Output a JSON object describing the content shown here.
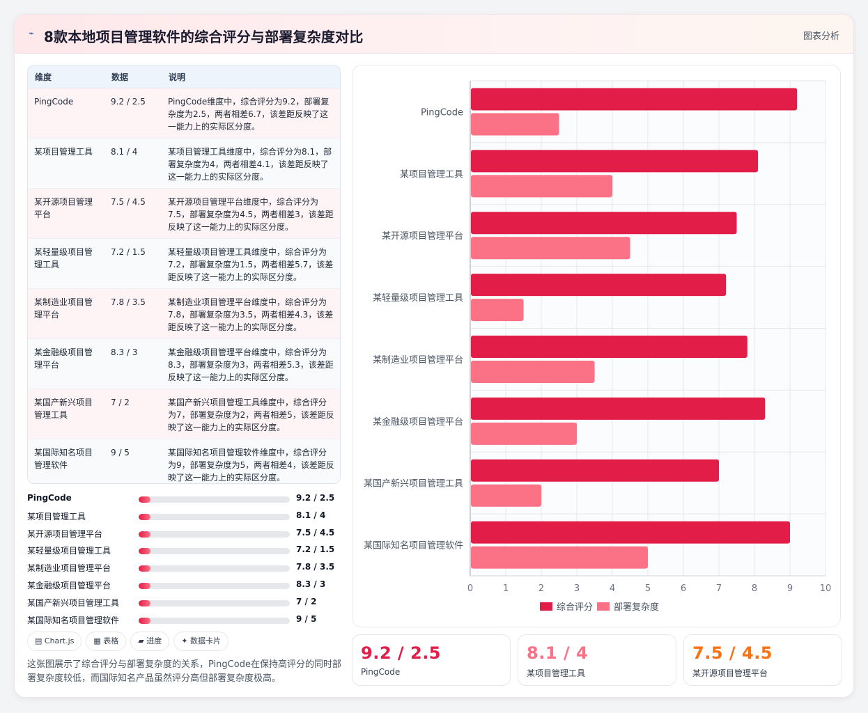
{
  "header": {
    "icon": "chart-line-icon",
    "title": "8款本地项目管理软件的综合评分与部署复杂度对比",
    "action_label": "图表分析"
  },
  "table": {
    "headers": [
      "维度",
      "数据",
      "说明"
    ],
    "rows": [
      {
        "name": "PingCode",
        "data": "9.2 / 2.5",
        "desc": "PingCode维度中，综合评分为9.2，部署复杂度为2.5，两者相差6.7，该差距反映了这一能力上的实际区分度。"
      },
      {
        "name": "某项目管理工具",
        "data": "8.1 / 4",
        "desc": "某项目管理工具维度中，综合评分为8.1，部署复杂度为4，两者相差4.1，该差距反映了这一能力上的实际区分度。"
      },
      {
        "name": "某开源项目管理平台",
        "data": "7.5 / 4.5",
        "desc": "某开源项目管理平台维度中，综合评分为7.5，部署复杂度为4.5，两者相差3，该差距反映了这一能力上的实际区分度。"
      },
      {
        "name": "某轻量级项目管理工具",
        "data": "7.2 / 1.5",
        "desc": "某轻量级项目管理工具维度中，综合评分为7.2，部署复杂度为1.5，两者相差5.7，该差距反映了这一能力上的实际区分度。"
      },
      {
        "name": "某制造业项目管理平台",
        "data": "7.8 / 3.5",
        "desc": "某制造业项目管理平台维度中，综合评分为7.8，部署复杂度为3.5，两者相差4.3，该差距反映了这一能力上的实际区分度。"
      },
      {
        "name": "某金融级项目管理平台",
        "data": "8.3 / 3",
        "desc": "某金融级项目管理平台维度中，综合评分为8.3，部署复杂度为3，两者相差5.3，该差距反映了这一能力上的实际区分度。"
      },
      {
        "name": "某国产新兴项目管理工具",
        "data": "7 / 2",
        "desc": "某国产新兴项目管理工具维度中，综合评分为7，部署复杂度为2，两者相差5，该差距反映了这一能力上的实际区分度。"
      },
      {
        "name": "某国际知名项目管理软件",
        "data": "9 / 5",
        "desc": "某国际知名项目管理软件维度中，综合评分为9，部署复杂度为5，两者相差4，该差距反映了这一能力上的实际区分度。"
      }
    ]
  },
  "progress": {
    "items": [
      {
        "label": "PingCode",
        "value_text": "9.2 / 2.5",
        "fill_fraction": 0.08
      },
      {
        "label": "某项目管理工具",
        "value_text": "8.1 / 4",
        "fill_fraction": 0.08
      },
      {
        "label": "某开源项目管理平台",
        "value_text": "7.5 / 4.5",
        "fill_fraction": 0.08
      },
      {
        "label": "某轻量级项目管理工具",
        "value_text": "7.2 / 1.5",
        "fill_fraction": 0.08
      },
      {
        "label": "某制造业项目管理平台",
        "value_text": "7.8 / 3.5",
        "fill_fraction": 0.08
      },
      {
        "label": "某金融级项目管理平台",
        "value_text": "8.3 / 3",
        "fill_fraction": 0.08
      },
      {
        "label": "某国产新兴项目管理工具",
        "value_text": "7 / 2",
        "fill_fraction": 0.08
      },
      {
        "label": "某国际知名项目管理软件",
        "value_text": "9 / 5",
        "fill_fraction": 0.08
      }
    ]
  },
  "view_tabs": [
    "▤ Chart.js",
    "▦ 表格",
    "▰ 进度",
    "✦ 数据卡片"
  ],
  "description": "这张图展示了综合评分与部署复杂度的关系，PingCode在保持高评分的同时部署复杂度较低，而国际知名产品虽然评分高但部署复杂度极高。",
  "stats": [
    {
      "value": "9.2 / 2.5",
      "label": "PingCode",
      "color": "#e11d48"
    },
    {
      "value": "8.1 / 4",
      "label": "某项目管理工具",
      "color": "#fb7185"
    },
    {
      "value": "7.5 / 4.5",
      "label": "某开源项目管理平台",
      "color": "#f97316"
    }
  ],
  "colors": {
    "series1": "#e11d48",
    "series2": "#fb7185",
    "accent": "#e11d48"
  },
  "chart_data": {
    "type": "bar",
    "orientation": "horizontal",
    "title": "",
    "xlabel": "",
    "ylabel": "",
    "categories": [
      "PingCode",
      "某项目管理工具",
      "某开源项目管理平台",
      "某轻量级项目管理工具",
      "某制造业项目管理平台",
      "某金融级项目管理平台",
      "某国产新兴项目管理工具",
      "某国际知名项目管理软件"
    ],
    "series": [
      {
        "name": "综合评分",
        "color": "#e11d48",
        "values": [
          9.2,
          8.1,
          7.5,
          7.2,
          7.8,
          8.3,
          7,
          9
        ]
      },
      {
        "name": "部署复杂度",
        "color": "#fb7185",
        "values": [
          2.5,
          4,
          4.5,
          1.5,
          3.5,
          3,
          2,
          5
        ]
      }
    ],
    "xlim": [
      0,
      10
    ],
    "xticks": [
      "0",
      "1",
      "2",
      "3",
      "4",
      "5",
      "6",
      "7",
      "8",
      "9",
      "10"
    ],
    "grid": true,
    "legend": "bottom"
  }
}
